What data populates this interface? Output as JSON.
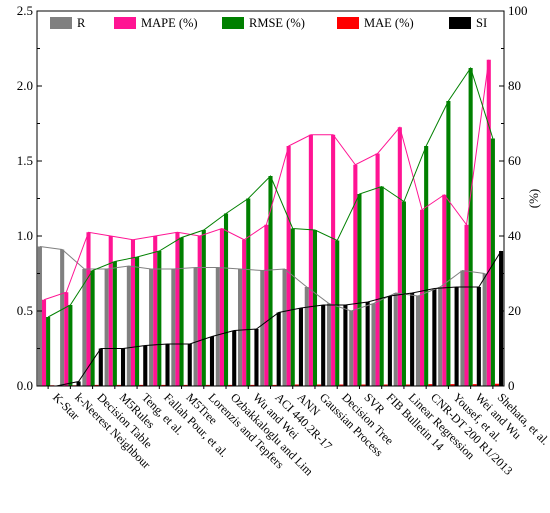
{
  "chart_data": {
    "type": "bar",
    "categories": [
      "K-Star",
      "k-Neerest Neighbour",
      "Decision Table",
      "M5Rules",
      "Teng, et al.",
      "Fallah Pour, et al.",
      "M5Tree",
      "Lorenzis and Tepfers",
      "Ozbakkaloglu and Lim",
      "Wu and Wei",
      "ACI 440.2R-17",
      "ANN",
      "Gaussian Process",
      "Decision Tree",
      "SVR",
      "FIB Bulletin 14",
      "Linear Regression",
      "CNR-DT 200 R1/2013",
      "Yousef, et al.",
      "Wei and Wu",
      "Shehata, et al."
    ],
    "series": [
      {
        "name": "R",
        "axis": "left",
        "color": "#808080",
        "line": true,
        "values": [
          0.93,
          0.91,
          0.78,
          0.78,
          0.8,
          0.78,
          0.78,
          0.79,
          0.79,
          0.78,
          0.77,
          0.78,
          0.66,
          0.55,
          0.5,
          0.55,
          0.62,
          0.6,
          0.66,
          0.77,
          0.75
        ]
      },
      {
        "name": "MAPE (%)",
        "axis": "right",
        "color": "#ff1493",
        "line": true,
        "values": [
          23,
          25,
          41,
          40,
          39,
          40,
          41,
          40,
          42,
          39,
          43,
          64,
          67,
          67,
          59,
          62,
          69,
          47,
          51,
          43,
          87
        ]
      },
      {
        "name": "RMSE (%)",
        "axis": "left",
        "color": "#008000",
        "line": true,
        "values": [
          0.46,
          0.54,
          0.77,
          0.83,
          0.86,
          0.9,
          0.99,
          1.04,
          1.15,
          1.25,
          1.4,
          1.05,
          1.04,
          0.97,
          1.28,
          1.33,
          1.23,
          1.6,
          1.9,
          2.12,
          1.65
        ]
      },
      {
        "name": "MAE (%)",
        "axis": "right",
        "color": "#ff0000",
        "line": false,
        "values": [
          0.2,
          0.2,
          0.3,
          0.3,
          0.3,
          0.3,
          0.3,
          0.3,
          0.3,
          0.3,
          0.3,
          0.4,
          0.4,
          0.4,
          0.4,
          0.4,
          0.4,
          0.5,
          0.5,
          0.5,
          0.6
        ]
      },
      {
        "name": "SI",
        "axis": "left",
        "color": "#000000",
        "line": true,
        "values": [
          0.0,
          0.03,
          0.25,
          0.25,
          0.27,
          0.28,
          0.28,
          0.33,
          0.37,
          0.38,
          0.49,
          0.52,
          0.54,
          0.54,
          0.56,
          0.6,
          0.62,
          0.65,
          0.66,
          0.66,
          0.9
        ]
      }
    ],
    "y_left": {
      "min": 0,
      "max": 2.5,
      "ticks": [
        "0.0",
        "0.5",
        "1.0",
        "1.5",
        "2.0",
        "2.5"
      ]
    },
    "y_right": {
      "min": 0,
      "max": 100,
      "ticks": [
        "0",
        "20",
        "40",
        "60",
        "80",
        "100"
      ],
      "label": "(%)"
    },
    "legend_position": "top",
    "grid": false
  }
}
